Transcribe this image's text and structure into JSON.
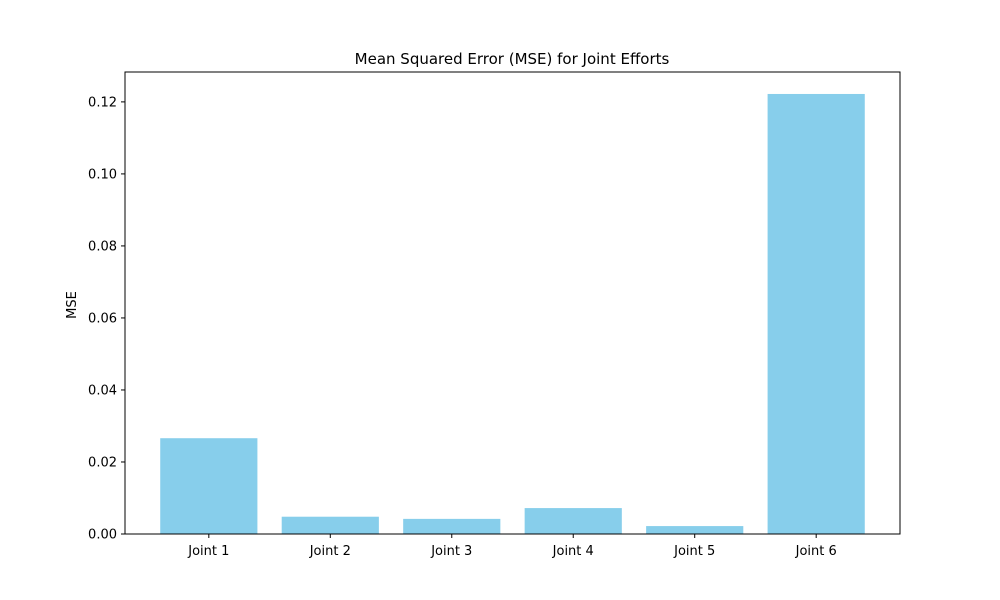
{
  "chart_data": {
    "type": "bar",
    "title": "Mean Squared Error (MSE) for Joint Efforts",
    "xlabel": "",
    "ylabel": "MSE",
    "categories": [
      "Joint 1",
      "Joint 2",
      "Joint 3",
      "Joint 4",
      "Joint 5",
      "Joint 6"
    ],
    "values": [
      0.0266,
      0.0048,
      0.0042,
      0.0072,
      0.0022,
      0.1222
    ],
    "ylim": [
      0,
      0.1283
    ],
    "yticks": [
      0.0,
      0.02,
      0.04,
      0.06,
      0.08,
      0.1,
      0.12
    ],
    "ytick_labels": [
      "0.00",
      "0.02",
      "0.04",
      "0.06",
      "0.08",
      "0.10",
      "0.12"
    ],
    "bar_color": "#87CEEB",
    "grid": false,
    "legend": "none"
  }
}
